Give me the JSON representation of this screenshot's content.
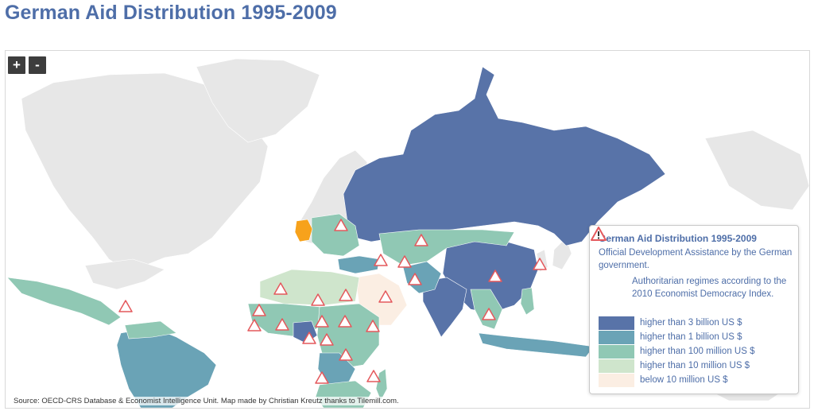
{
  "page": {
    "title": "German Aid Distribution 1995-2009"
  },
  "zoom": {
    "in_label": "+",
    "out_label": "-"
  },
  "legend": {
    "title": "German Aid Distribution 1995-2009",
    "subtitle": "Official Development Assistance by the German government.",
    "warning_icon": "warning-triangle-icon",
    "warning_text": "Authoritarian regimes according to the 2010 Economist Democracy Index.",
    "classes": [
      {
        "label": "higher than 3 billion US $",
        "color": "#5873a8"
      },
      {
        "label": "higher than 1 billion US $",
        "color": "#6aa3b6"
      },
      {
        "label": "higher than 100 million US $",
        "color": "#90c8b4"
      },
      {
        "label": "higher than 10 million US $",
        "color": "#cfe5cc"
      },
      {
        "label": "below 10 million US $",
        "color": "#fbeee3"
      }
    ]
  },
  "colors": {
    "donor": "#f7a21b",
    "no_data": "#e7e7e7",
    "warning": "#e4585c",
    "ocean": "#ffffff"
  },
  "source": "Source: OECD-CRS Database & Economist Intelligence Unit. Map made by Christian Kreutz thanks to Tilemill.com."
}
